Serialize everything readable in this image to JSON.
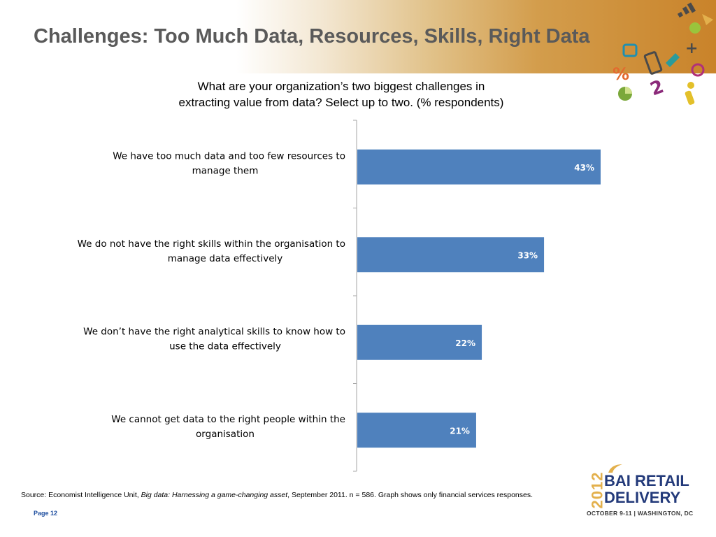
{
  "slide": {
    "title": "Challenges: Too Much Data, Resources, Skills, Right Data",
    "subtitle_line1": "What are your organization’s two biggest challenges in",
    "subtitle_line2": "extracting value from data? Select up to two. (% respondents)",
    "source_prefix": "Source: Economist Intelligence Unit, ",
    "source_italic": "Big data: Harnessing a game-changing asset",
    "source_suffix": ", September 2011.  n = 586. Graph shows only financial services responses.",
    "page_label": "Page 12"
  },
  "logo": {
    "year": "2012",
    "line1": "BAI RETAIL",
    "line2": "DELIVERY",
    "date_location": "OCTOBER 9-11 | WASHINGTON, DC"
  },
  "chart_data": {
    "type": "bar",
    "orientation": "horizontal",
    "categories": [
      [
        "We have too much data and too few resources to",
        "manage them"
      ],
      [
        "We do not have the right skills within the organisation to",
        "manage data effectively"
      ],
      [
        "We don’t have the right analytical skills to know how to",
        "use the data effectively"
      ],
      [
        "We cannot get data to the right people within the",
        "organisation"
      ]
    ],
    "values": [
      43,
      33,
      22,
      21
    ],
    "value_labels": [
      "43%",
      "33%",
      "22%",
      "21%"
    ],
    "xlim": [
      0,
      50
    ],
    "bar_color": "#4f81bd",
    "grid": false
  },
  "colors": {
    "title": "#5a5a5a",
    "banner_accent": "#c9832a",
    "logo_blue": "#233a7a",
    "logo_gold": "#e3b04c"
  }
}
